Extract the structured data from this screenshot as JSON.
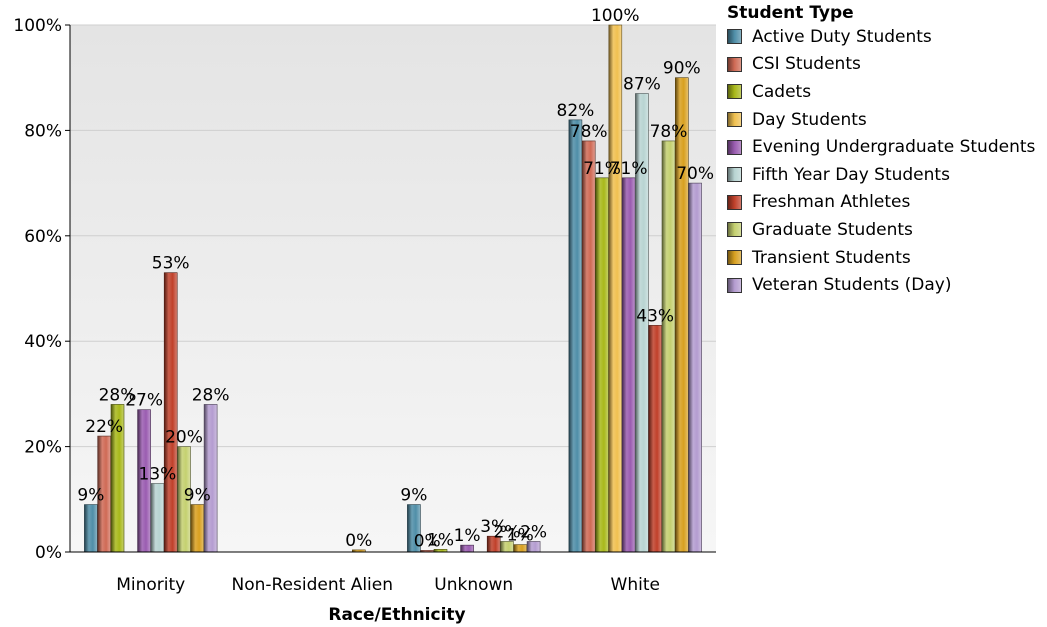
{
  "chart_data": {
    "type": "bar",
    "xlabel": "Race/Ethnicity",
    "ylabel": "",
    "ylim": [
      0,
      100
    ],
    "yticks": [
      "0%",
      "20%",
      "40%",
      "60%",
      "80%",
      "100%"
    ],
    "categories": [
      "Minority",
      "Non-Resident Alien",
      "Unknown",
      "White"
    ],
    "legend_title": "Student Type",
    "legend_position": "right",
    "grid": true,
    "series": [
      {
        "name": "Active Duty Students",
        "color": "#4f8ea8",
        "values": [
          9,
          null,
          9,
          82
        ],
        "labels": [
          "9%",
          "",
          "9%",
          "82%"
        ]
      },
      {
        "name": "CSI Students",
        "color": "#cf6a55",
        "values": [
          22,
          null,
          0.3,
          78
        ],
        "labels": [
          "22%",
          "",
          "0%",
          "78%"
        ]
      },
      {
        "name": "Cadets",
        "color": "#a8b81a",
        "values": [
          28,
          null,
          0.5,
          71
        ],
        "labels": [
          "28%",
          "",
          "1%",
          "71%"
        ]
      },
      {
        "name": "Day Students",
        "color": "#f0c050",
        "values": [
          null,
          null,
          null,
          100
        ],
        "labels": [
          "",
          "",
          "",
          "100%"
        ]
      },
      {
        "name": "Evening Undergraduate Students",
        "color": "#9a5cb0",
        "values": [
          27,
          null,
          1.3,
          71
        ],
        "labels": [
          "27%",
          "",
          "1%",
          "71%"
        ]
      },
      {
        "name": "Fifth Year Day Students",
        "color": "#b8d4d2",
        "values": [
          13,
          null,
          null,
          87
        ],
        "labels": [
          "13%",
          "",
          "",
          "87%"
        ]
      },
      {
        "name": "Freshman Athletes",
        "color": "#c0402a",
        "values": [
          53,
          null,
          3,
          43
        ],
        "labels": [
          "53%",
          "",
          "3%",
          "43%"
        ]
      },
      {
        "name": "Graduate Students",
        "color": "#c4d070",
        "values": [
          20,
          null,
          2,
          78
        ],
        "labels": [
          "20%",
          "",
          "2%",
          "78%"
        ]
      },
      {
        "name": "Transient Students",
        "color": "#d8a020",
        "values": [
          9,
          0.4,
          1.4,
          90
        ],
        "labels": [
          "9%",
          "0%",
          "1%",
          "90%"
        ]
      },
      {
        "name": "Veteran Students (Day)",
        "color": "#b49cd0",
        "values": [
          28,
          null,
          2,
          70
        ],
        "labels": [
          "28%",
          "",
          "2%",
          "70%"
        ]
      }
    ]
  }
}
